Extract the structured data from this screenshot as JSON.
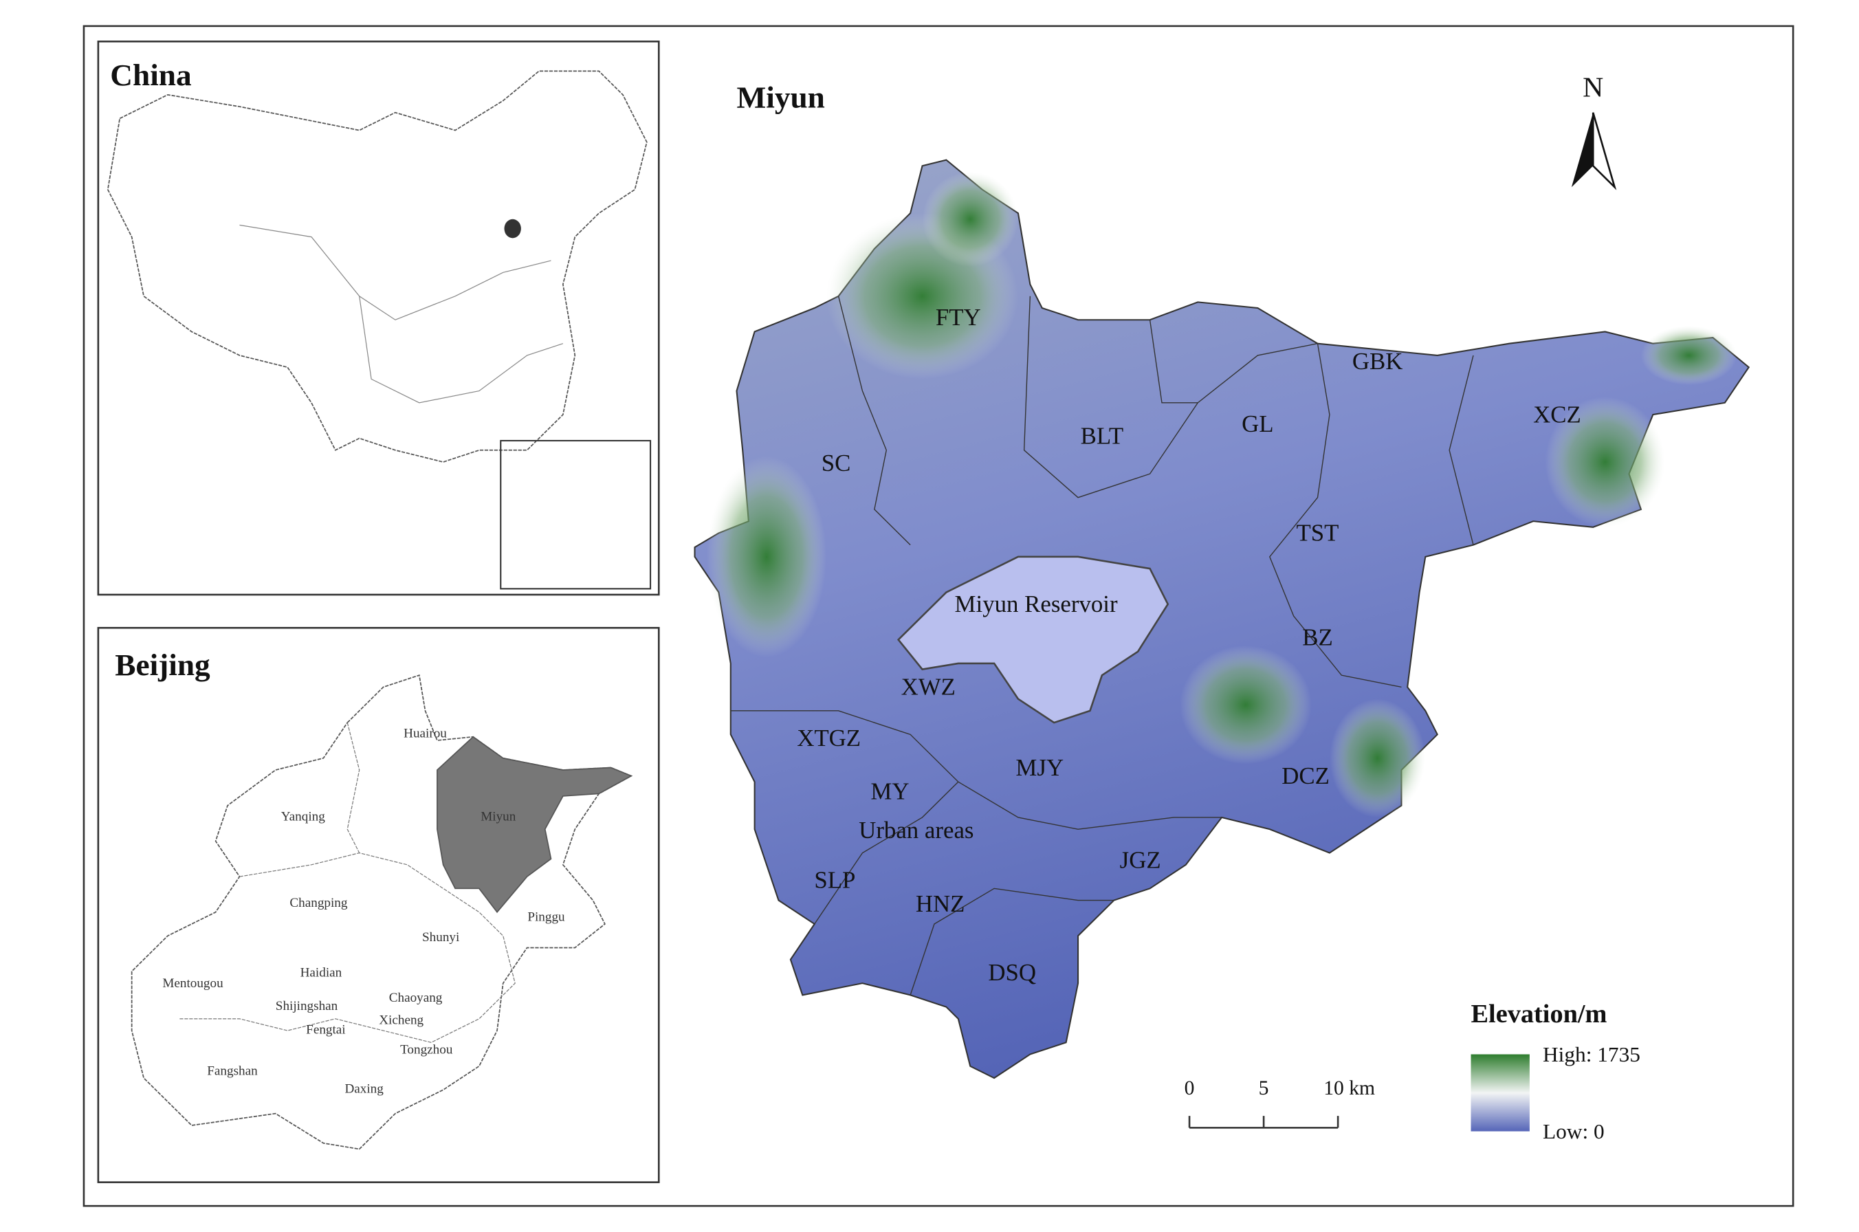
{
  "panels": {
    "china": {
      "title": "China"
    },
    "beijing": {
      "title": "Beijing",
      "districts": [
        "Huairou",
        "Yanqing",
        "Miyun",
        "Changping",
        "Shunyi",
        "Pinggu",
        "Mentougou",
        "Haidian",
        "Shijingshan",
        "Chaoyang",
        "Xicheng",
        "Fengtai",
        "Tongzhou",
        "Fangshan",
        "Daxing"
      ]
    },
    "miyun": {
      "title": "Miyun",
      "north": "N",
      "towns": [
        "FTY",
        "BLT",
        "GL",
        "GBK",
        "XCZ",
        "SC",
        "TST",
        "Miyun Reservoir",
        "BZ",
        "XWZ",
        "XTGZ",
        "MJY",
        "DCZ",
        "MY",
        "Urban areas",
        "SLP",
        "JGZ",
        "HNZ",
        "DSQ"
      ],
      "scale_bar": [
        "0",
        "5",
        "10 km"
      ],
      "legend": {
        "title": "Elevation/m",
        "high": "High: 1735",
        "low": "Low: 0"
      }
    }
  }
}
